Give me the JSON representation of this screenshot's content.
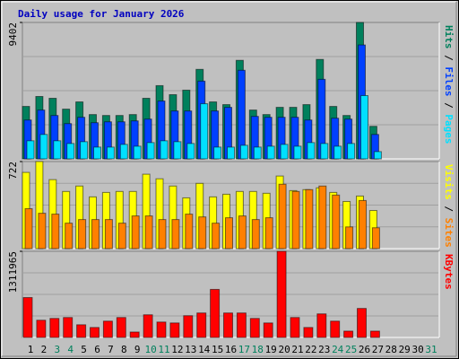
{
  "chart_data": [
    {
      "type": "bar",
      "title": "Daily usage for January 2026",
      "legend_separator": " / ",
      "ylim": [
        0,
        9402
      ],
      "yticks": [
        9402
      ],
      "series": [
        {
          "name": "Hits",
          "color": "#00805c",
          "values": [
            3613,
            4299,
            4174,
            3427,
            3925,
            3053,
            2990,
            2990,
            3053,
            4174,
            5046,
            4423,
            4735,
            6168,
            3925,
            3738,
            6791,
            3364,
            3053,
            3551,
            3551,
            3738,
            6853,
            3613,
            2990,
            9402,
            2243,
            null,
            null,
            null,
            null
          ]
        },
        {
          "name": "Files",
          "color": "#0040ff",
          "values": [
            2679,
            3364,
            2990,
            2430,
            2866,
            2492,
            2554,
            2554,
            2617,
            2741,
            3987,
            3302,
            3302,
            5358,
            3302,
            3551,
            6105,
            2928,
            2866,
            2866,
            2866,
            2679,
            5482,
            2804,
            2741,
            7850,
            1682,
            null,
            null,
            null,
            null
          ]
        },
        {
          "name": "Pages",
          "color": "#00e0ff",
          "values": [
            1246,
            1682,
            1246,
            1059,
            1184,
            810,
            810,
            997,
            872,
            1121,
            1246,
            1184,
            1059,
            3800,
            810,
            810,
            935,
            810,
            872,
            997,
            872,
            1121,
            1059,
            872,
            1059,
            4361,
            498,
            null,
            null,
            null,
            null
          ]
        }
      ]
    },
    {
      "type": "bar",
      "legend_separator": " / ",
      "ylim": [
        0,
        722
      ],
      "yticks": [
        722
      ],
      "series": [
        {
          "name": "Visits",
          "color": "#ffff00",
          "values": [
            632,
            722,
            572,
            474,
            519,
            429,
            466,
            474,
            474,
            617,
            579,
            519,
            421,
            541,
            429,
            451,
            474,
            474,
            459,
            602,
            481,
            489,
            504,
            466,
            391,
            436,
            316,
            null,
            null,
            null,
            null
          ]
        },
        {
          "name": "Sites",
          "color": "#ff8000",
          "values": [
            331,
            293,
            286,
            211,
            241,
            241,
            241,
            211,
            271,
            271,
            241,
            241,
            286,
            263,
            211,
            256,
            271,
            241,
            256,
            534,
            474,
            489,
            519,
            444,
            180,
            399,
            173,
            null,
            null,
            null,
            null
          ]
        }
      ]
    },
    {
      "type": "bar",
      "ylim": [
        0,
        1311965
      ],
      "yticks": [
        1311965
      ],
      "series": [
        {
          "name": "KBytes",
          "color": "#ff0000",
          "values": [
            607640,
            262390,
            290010,
            303820,
            193340,
            151910,
            248580,
            303820,
            82860,
            345250,
            234770,
            220960,
            331440,
            372870,
            731930,
            372870,
            372870,
            290010,
            220960,
            1311965,
            303820,
            151910,
            359060,
            248580,
            96670,
            441920,
            96670,
            null,
            null,
            null,
            null
          ]
        }
      ],
      "categories": [
        "1",
        "2",
        "3",
        "4",
        "5",
        "6",
        "7",
        "8",
        "9",
        "10",
        "11",
        "12",
        "13",
        "14",
        "15",
        "16",
        "17",
        "18",
        "19",
        "20",
        "21",
        "22",
        "23",
        "24",
        "25",
        "26",
        "27",
        "28",
        "29",
        "30",
        "31"
      ],
      "category_colors": [
        "#000000",
        "#000000",
        "#00805c",
        "#00805c",
        "#000000",
        "#000000",
        "#000000",
        "#000000",
        "#000000",
        "#00805c",
        "#00805c",
        "#000000",
        "#000000",
        "#000000",
        "#000000",
        "#000000",
        "#00805c",
        "#00805c",
        "#000000",
        "#000000",
        "#000000",
        "#000000",
        "#000000",
        "#00805c",
        "#00805c",
        "#000000",
        "#000000",
        "#000000",
        "#000000",
        "#000000",
        "#00805c"
      ]
    }
  ]
}
